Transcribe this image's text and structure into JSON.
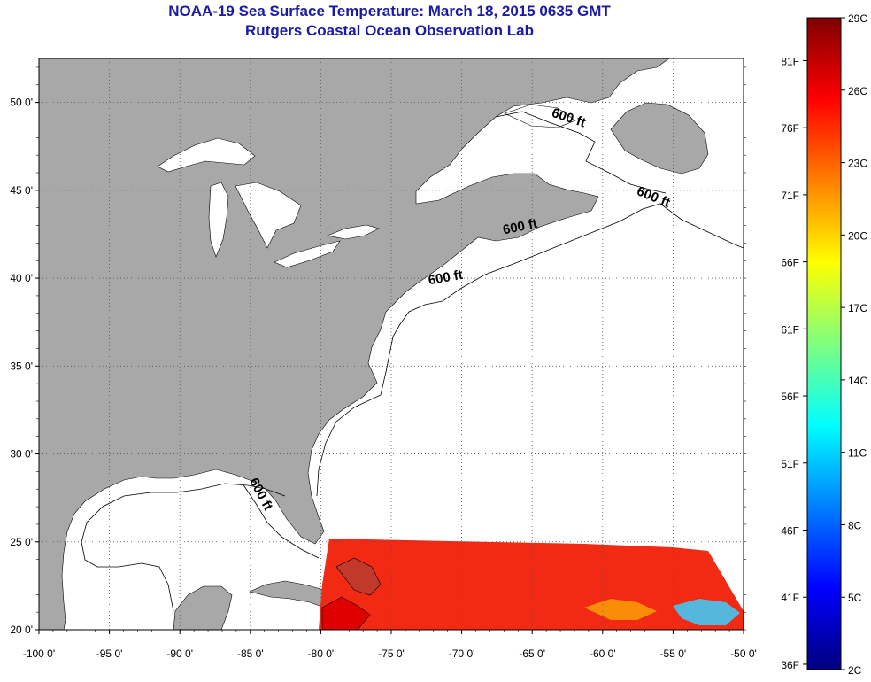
{
  "title": {
    "line1": "NOAA-19 Sea Surface Temperature:  March 18, 2015 0635 GMT",
    "line2": "Rutgers Coastal Ocean Observation Lab"
  },
  "map": {
    "lon_range": [
      -100,
      -50
    ],
    "lat_range": [
      20,
      52.5
    ],
    "lon_ticks": [
      {
        "value": -100,
        "label": "-100 0'"
      },
      {
        "value": -95,
        "label": "-95 0'"
      },
      {
        "value": -90,
        "label": "-90 0'"
      },
      {
        "value": -85,
        "label": "-85 0'"
      },
      {
        "value": -80,
        "label": "-80 0'"
      },
      {
        "value": -75,
        "label": "-75 0'"
      },
      {
        "value": -70,
        "label": "-70 0'"
      },
      {
        "value": -65,
        "label": "-65 0'"
      },
      {
        "value": -60,
        "label": "-60 0'"
      },
      {
        "value": -55,
        "label": "-55 0'"
      },
      {
        "value": -50,
        "label": "-50 0'"
      }
    ],
    "lat_ticks": [
      {
        "value": 20,
        "label": "20 0'"
      },
      {
        "value": 25,
        "label": "25 0'"
      },
      {
        "value": 30,
        "label": "30 0'"
      },
      {
        "value": 35,
        "label": "35 0'"
      },
      {
        "value": 40,
        "label": "40 0'"
      },
      {
        "value": 45,
        "label": "45 0'"
      },
      {
        "value": 50,
        "label": "50 0'"
      }
    ],
    "contour_labels": [
      {
        "text": "600 ft",
        "lon": -62.5,
        "lat": 48.9,
        "rotate": 18
      },
      {
        "text": "600 ft",
        "lon": -56.5,
        "lat": 44.4,
        "rotate": 22
      },
      {
        "text": "600 ft",
        "lon": -65.8,
        "lat": 42.7,
        "rotate": -12
      },
      {
        "text": "600 ft",
        "lon": -71.1,
        "lat": 39.8,
        "rotate": -10
      },
      {
        "text": "600 ft",
        "lon": -84.5,
        "lat": 27.6,
        "rotate": 62
      }
    ],
    "colors": {
      "land": "#a8a8a8",
      "ocean": "#ffffff",
      "sst_main": "#f22a14",
      "sst_warm": "#ff1a00",
      "grid": "#444444"
    }
  },
  "colorbar": {
    "celsius": [
      {
        "value": 29,
        "label": "29C"
      },
      {
        "value": 26,
        "label": "26C"
      },
      {
        "value": 23,
        "label": "23C"
      },
      {
        "value": 20,
        "label": "20C"
      },
      {
        "value": 17,
        "label": "17C"
      },
      {
        "value": 14,
        "label": "14C"
      },
      {
        "value": 11,
        "label": "11C"
      },
      {
        "value": 8,
        "label": "8C"
      },
      {
        "value": 5,
        "label": "5C"
      },
      {
        "value": 2,
        "label": "2C"
      }
    ],
    "fahrenheit": [
      {
        "value": 81,
        "label": "81F"
      },
      {
        "value": 76,
        "label": "76F"
      },
      {
        "value": 71,
        "label": "71F"
      },
      {
        "value": 66,
        "label": "66F"
      },
      {
        "value": 61,
        "label": "61F"
      },
      {
        "value": 56,
        "label": "56F"
      },
      {
        "value": 51,
        "label": "51F"
      },
      {
        "value": 46,
        "label": "46F"
      },
      {
        "value": 41,
        "label": "41F"
      },
      {
        "value": 36,
        "label": "36F"
      }
    ],
    "range_c": [
      2,
      29
    ],
    "stops": [
      "#00007f",
      "#0000ff",
      "#007fff",
      "#00ffff",
      "#7fff7f",
      "#ffff00",
      "#ff7f00",
      "#ff0000",
      "#7f0000"
    ]
  }
}
